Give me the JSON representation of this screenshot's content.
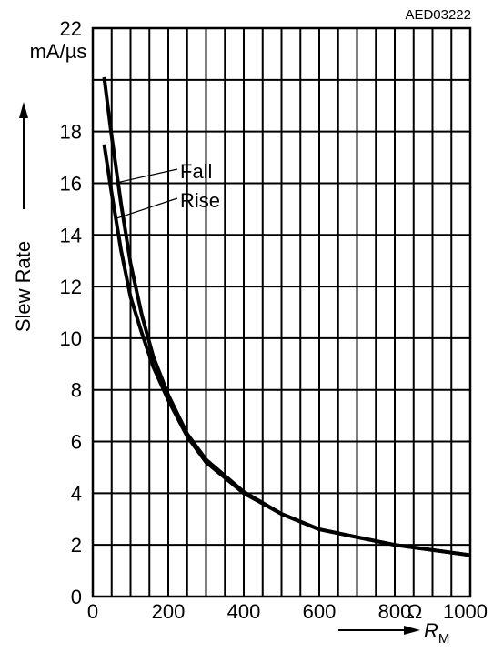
{
  "chart_data": {
    "type": "line",
    "code": "AED03222",
    "yunit": "mA/µs",
    "ylabel": "Slew Rate",
    "xunit": "Ω",
    "xlabel_symbol": "R",
    "xlabel_subscript": "M",
    "xlim": [
      0,
      1000
    ],
    "ylim": [
      0,
      22
    ],
    "xticks": [
      0,
      200,
      400,
      600,
      800,
      1000
    ],
    "xtick_labels": [
      "0",
      "200",
      "400",
      "600",
      "800",
      "1000"
    ],
    "yticks": [
      0,
      2,
      4,
      6,
      8,
      10,
      12,
      14,
      16,
      18,
      22
    ],
    "ytick_labels": [
      "0",
      "2",
      "4",
      "6",
      "8",
      "10",
      "12",
      "14",
      "16",
      "18",
      "22"
    ],
    "grid": true,
    "series": [
      {
        "name": "Fall",
        "x": [
          30,
          50,
          75,
          100,
          130,
          160,
          200,
          250,
          300,
          400,
          500,
          600,
          800,
          1000
        ],
        "y": [
          20.1,
          17.8,
          15.2,
          12.9,
          10.9,
          9.3,
          7.8,
          6.3,
          5.3,
          4.05,
          3.2,
          2.6,
          2.0,
          1.6
        ]
      },
      {
        "name": "Rise",
        "x": [
          30,
          50,
          75,
          100,
          130,
          160,
          200,
          250,
          300,
          400,
          500,
          600,
          800,
          1000
        ],
        "y": [
          17.5,
          15.6,
          13.4,
          11.6,
          10.2,
          8.9,
          7.6,
          6.2,
          5.2,
          4.0,
          3.2,
          2.6,
          2.0,
          1.6
        ]
      }
    ]
  }
}
